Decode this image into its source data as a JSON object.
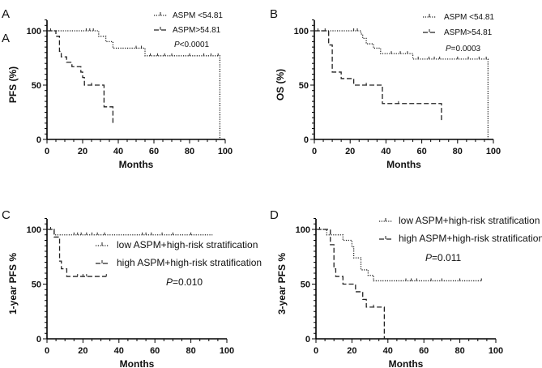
{
  "chart_data": [
    {
      "panel_label": "A",
      "stray_label": "A",
      "type": "line",
      "subtype": "kaplan-meier step",
      "xlabel": "Months",
      "ylabel": "PFS (%)",
      "xlim": [
        0,
        100
      ],
      "ylim": [
        0,
        100
      ],
      "xticks": [
        0,
        20,
        40,
        60,
        80,
        100
      ],
      "yticks": [
        0,
        50,
        100
      ],
      "legend_position": "top-right",
      "p_prefix": "P",
      "p_value": "<0.0001",
      "series": [
        {
          "name": "ASPM <54.81",
          "style": "dotted",
          "steps": [
            [
              0,
              100
            ],
            [
              29,
              95
            ],
            [
              33,
              90
            ],
            [
              37,
              84
            ],
            [
              55,
              77
            ],
            [
              97,
              0
            ]
          ],
          "end": 97,
          "censored": [
            2,
            22,
            24,
            26,
            50,
            53,
            58,
            62,
            66,
            70,
            80,
            88,
            92,
            96
          ]
        },
        {
          "name": "ASPM>54.81",
          "style": "dashed",
          "steps": [
            [
              0,
              100
            ],
            [
              5,
              95
            ],
            [
              7,
              81
            ],
            [
              8,
              76
            ],
            [
              11,
              71
            ],
            [
              14,
              67
            ],
            [
              19,
              62
            ],
            [
              20,
              57
            ],
            [
              21,
              50
            ],
            [
              32,
              30
            ],
            [
              37,
              15
            ]
          ],
          "end": 37,
          "censored": [
            25
          ]
        }
      ]
    },
    {
      "panel_label": "B",
      "type": "line",
      "subtype": "kaplan-meier step",
      "xlabel": "Months",
      "ylabel": "OS (%)",
      "xlim": [
        0,
        100
      ],
      "ylim": [
        0,
        100
      ],
      "xticks": [
        0,
        20,
        40,
        60,
        80,
        100
      ],
      "yticks": [
        0,
        50,
        100
      ],
      "legend_position": "top-right",
      "p_prefix": "P",
      "p_value": "=0.0003",
      "series": [
        {
          "name": "ASPM <54.81",
          "style": "dotted",
          "steps": [
            [
              0,
              100
            ],
            [
              26,
              97
            ],
            [
              27,
              93
            ],
            [
              29,
              88
            ],
            [
              33,
              84
            ],
            [
              37,
              79
            ],
            [
              55,
              74
            ],
            [
              97,
              0
            ]
          ],
          "end": 97,
          "censored": [
            2,
            6,
            22,
            24,
            43,
            48,
            52,
            58,
            64,
            67,
            70,
            80,
            86,
            92,
            96
          ]
        },
        {
          "name": "ASPM>54.81",
          "style": "dashed",
          "steps": [
            [
              0,
              100
            ],
            [
              8,
              87
            ],
            [
              10,
              62
            ],
            [
              15,
              56
            ],
            [
              22,
              50
            ],
            [
              38,
              33
            ],
            [
              71,
              17
            ]
          ],
          "end": 71,
          "censored": [
            29,
            47
          ]
        }
      ]
    },
    {
      "panel_label": "C",
      "type": "line",
      "subtype": "kaplan-meier step",
      "xlabel": "Months",
      "ylabel": "1-year PFS %",
      "xlim": [
        0,
        100
      ],
      "ylim": [
        0,
        100
      ],
      "xticks": [
        0,
        20,
        40,
        60,
        80,
        100
      ],
      "yticks": [
        0,
        50,
        100
      ],
      "legend_position": "right",
      "p_prefix": "P",
      "p_value": "=0.010",
      "series": [
        {
          "name": "low ASPM+high-risk stratification",
          "style": "dotted",
          "steps": [
            [
              0,
              100
            ],
            [
              4,
              95
            ]
          ],
          "end": 92,
          "censored": [
            2,
            15,
            17,
            19,
            22,
            25,
            28,
            32,
            53,
            55,
            58,
            64,
            70,
            80
          ]
        },
        {
          "name": "high ASPM+high-risk stratification",
          "style": "dashed",
          "steps": [
            [
              0,
              100
            ],
            [
              4,
              93
            ],
            [
              7,
              71
            ],
            [
              8,
              64
            ],
            [
              11,
              57
            ]
          ],
          "end": 33,
          "censored": [
            17,
            20,
            22,
            33
          ]
        }
      ]
    },
    {
      "panel_label": "D",
      "type": "line",
      "subtype": "kaplan-meier step",
      "xlabel": "Months",
      "ylabel": "3-year PFS %",
      "xlim": [
        0,
        100
      ],
      "ylim": [
        0,
        100
      ],
      "xticks": [
        0,
        20,
        40,
        60,
        80,
        100
      ],
      "yticks": [
        0,
        50,
        100
      ],
      "legend_position": "top-right",
      "p_prefix": "P",
      "p_value": "=0.011",
      "series": [
        {
          "name": "low ASPM+high-risk stratification",
          "style": "dotted",
          "steps": [
            [
              0,
              100
            ],
            [
              6,
              95
            ],
            [
              15,
              90
            ],
            [
              20,
              84
            ],
            [
              21,
              74
            ],
            [
              25,
              63
            ],
            [
              29,
              58
            ],
            [
              32,
              53
            ]
          ],
          "end": 92,
          "censored": [
            2,
            50,
            53,
            56,
            64,
            70,
            80,
            92
          ]
        },
        {
          "name": "high ASPM+high-risk stratification",
          "style": "dashed",
          "steps": [
            [
              0,
              100
            ],
            [
              8,
              86
            ],
            [
              10,
              64
            ],
            [
              11,
              57
            ],
            [
              15,
              50
            ],
            [
              22,
              43
            ],
            [
              26,
              36
            ],
            [
              28,
              29
            ],
            [
              38,
              0
            ]
          ],
          "end": 38,
          "censored": [
            32
          ]
        }
      ]
    }
  ]
}
